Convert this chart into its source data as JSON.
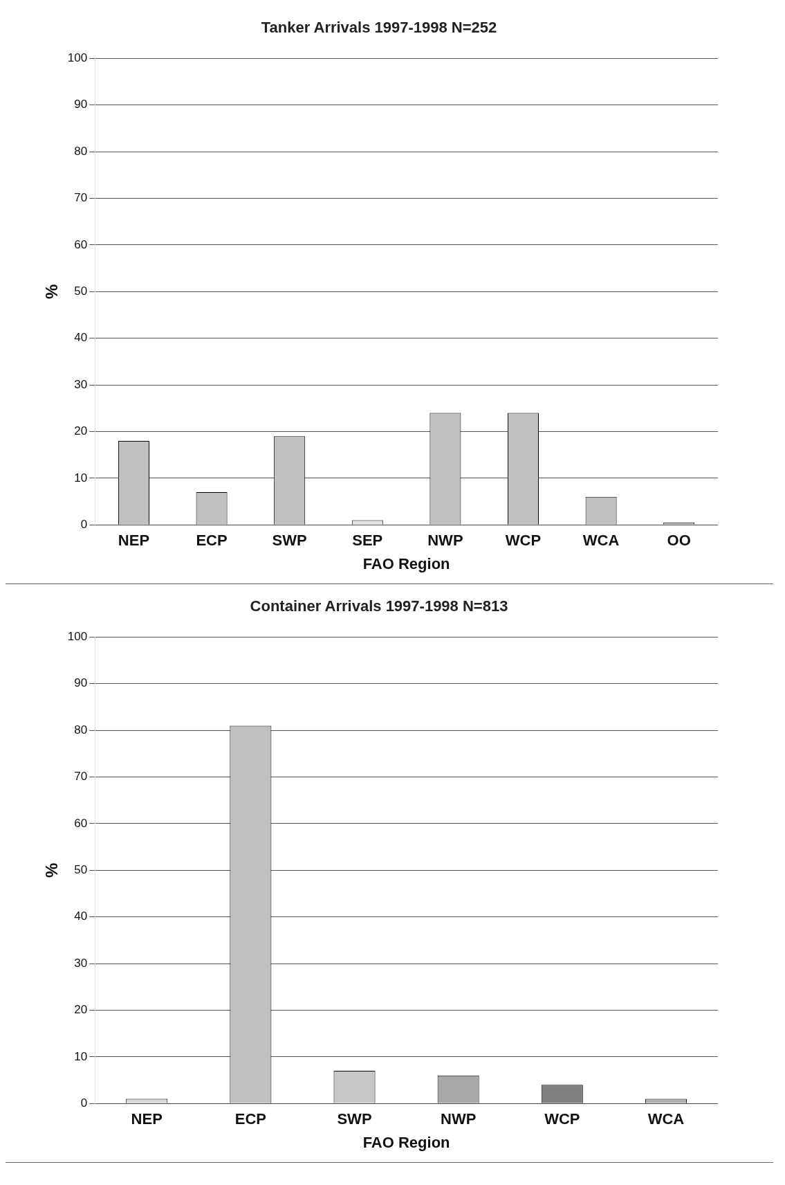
{
  "chart_data": [
    {
      "type": "bar",
      "title": "Tanker Arrivals 1997-1998 N=252",
      "xlabel": "FAO Region",
      "ylabel": "%",
      "categories": [
        "NEP",
        "ECP",
        "SWP",
        "SEP",
        "NWP",
        "WCP",
        "WCA",
        "OO"
      ],
      "values": [
        18,
        7,
        19,
        1,
        24,
        24,
        6,
        0.5
      ],
      "colors": [
        "#c0c0c0",
        "#c0c0c0",
        "#c0c0c0",
        "#e0e0e0",
        "#c0c0c0",
        "#c0c0c0",
        "#c0c0c0",
        "#c0c0c0"
      ],
      "ylim": [
        0,
        100
      ],
      "yticks": [
        0,
        10,
        20,
        30,
        40,
        50,
        60,
        70,
        80,
        90,
        100
      ],
      "grid": "y",
      "legend": false
    },
    {
      "type": "bar",
      "title": "Container Arrivals 1997-1998 N=813",
      "xlabel": "FAO Region",
      "ylabel": "%",
      "categories": [
        "NEP",
        "ECP",
        "SWP",
        "NWP",
        "WCP",
        "WCA"
      ],
      "values": [
        1,
        81,
        7,
        6,
        4,
        1
      ],
      "colors": [
        "#d8d8d8",
        "#c0c0c0",
        "#c8c8c8",
        "#a8a8a8",
        "#808080",
        "#b0b0b0"
      ],
      "ylim": [
        0,
        100
      ],
      "yticks": [
        0,
        10,
        20,
        30,
        40,
        50,
        60,
        70,
        80,
        90,
        100
      ],
      "grid": "y",
      "legend": false
    }
  ]
}
